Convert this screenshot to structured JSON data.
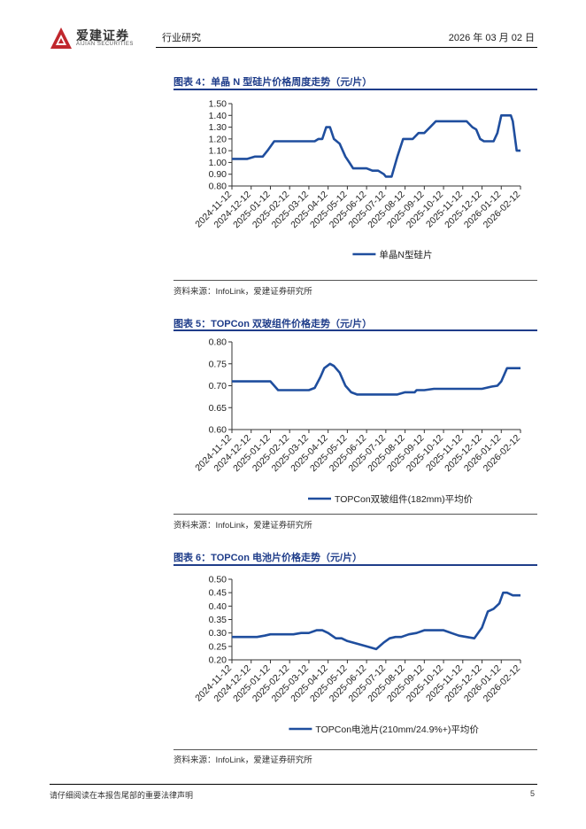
{
  "header": {
    "company_cn": "爱建证券",
    "company_en": "AIJIAN SECURITIES",
    "category": "行业研究",
    "date": "2026 年 03 月 02 日",
    "brand_color": "#c0272d"
  },
  "figures": [
    {
      "title": "图表 4：单晶 N 型硅片价格周度走势（元/片）",
      "source": "资料来源：InfoLink，爱建证券研究所"
    },
    {
      "title": "图表 5：TOPCon 双玻组件价格走势（元/片）",
      "source": "资料来源：InfoLink，爱建证券研究所"
    },
    {
      "title": "图表 6：TOPCon 电池片价格走势（元/片）",
      "source": "资料来源：InfoLink，爱建证券研究所"
    }
  ],
  "chart_data": [
    {
      "type": "line",
      "categories": [
        "2024-11-12",
        "2024-12-12",
        "2025-01-12",
        "2025-02-12",
        "2025-03-12",
        "2025-04-12",
        "2025-05-12",
        "2025-06-12",
        "2025-07-12",
        "2025-08-12",
        "2025-09-12",
        "2025-10-12",
        "2025-11-12",
        "2025-12-12",
        "2026-01-12",
        "2026-02-12"
      ],
      "ylim": [
        0.8,
        1.5
      ],
      "yticks": [
        "0.80",
        "0.90",
        "1.00",
        "1.10",
        "1.20",
        "1.30",
        "1.40",
        "1.50"
      ],
      "legend_position": "bottom",
      "color": "#1f4e9e",
      "series": [
        {
          "name": "单晶N型硅片",
          "x": [
            0,
            0.25,
            0.6,
            0.8,
            1.2,
            1.6,
            1.85,
            2.2,
            2.5,
            3.0,
            3.5,
            3.8,
            4.0,
            4.3,
            4.5,
            4.7,
            4.9,
            5.1,
            5.3,
            5.6,
            5.9,
            6.1,
            6.3,
            6.5,
            6.8,
            7.0,
            7.3,
            7.6,
            7.9,
            8.0,
            8.3,
            8.6,
            8.9,
            9.1,
            9.4,
            9.7,
            10.0,
            10.3,
            10.6,
            10.9,
            11.1,
            11.3,
            11.6,
            11.9,
            12.2,
            12.5,
            12.7,
            12.9,
            13.1,
            13.4,
            13.6,
            13.8,
            14.0,
            14.2,
            14.5,
            14.6,
            14.8,
            15.0
          ],
          "values": [
            1.03,
            1.03,
            1.03,
            1.03,
            1.05,
            1.05,
            1.1,
            1.18,
            1.18,
            1.18,
            1.18,
            1.18,
            1.18,
            1.18,
            1.2,
            1.2,
            1.3,
            1.3,
            1.2,
            1.16,
            1.05,
            1.0,
            0.95,
            0.95,
            0.95,
            0.95,
            0.93,
            0.93,
            0.9,
            0.88,
            0.88,
            1.05,
            1.2,
            1.2,
            1.2,
            1.25,
            1.25,
            1.3,
            1.35,
            1.35,
            1.35,
            1.35,
            1.35,
            1.35,
            1.35,
            1.3,
            1.28,
            1.2,
            1.18,
            1.18,
            1.18,
            1.25,
            1.4,
            1.4,
            1.4,
            1.35,
            1.1,
            1.1
          ]
        }
      ]
    },
    {
      "type": "line",
      "categories": [
        "2024-11-12",
        "2024-12-12",
        "2025-01-12",
        "2025-02-12",
        "2025-03-12",
        "2025-04-12",
        "2025-05-12",
        "2025-06-12",
        "2025-07-12",
        "2025-08-12",
        "2025-09-12",
        "2025-10-12",
        "2025-11-12",
        "2025-12-12",
        "2026-01-12",
        "2026-02-12"
      ],
      "ylim": [
        0.6,
        0.8
      ],
      "yticks": [
        "0.60",
        "0.65",
        "0.70",
        "0.75",
        "0.80"
      ],
      "legend_position": "bottom",
      "color": "#1f4e9e",
      "series": [
        {
          "name": "TOPCon双玻组件(182mm)平均价",
          "x": [
            0,
            0.5,
            1.0,
            1.4,
            1.7,
            2.0,
            2.4,
            2.7,
            3.0,
            3.3,
            3.6,
            4.0,
            4.3,
            4.6,
            4.8,
            5.1,
            5.3,
            5.6,
            5.9,
            6.2,
            6.5,
            7.0,
            7.5,
            8.0,
            8.4,
            8.6,
            9.0,
            9.5,
            9.6,
            10.0,
            10.5,
            11.0,
            11.5,
            12.0,
            12.6,
            13.0,
            13.5,
            13.8,
            14.0,
            14.3,
            14.6,
            14.9,
            15.0
          ],
          "values": [
            0.71,
            0.71,
            0.71,
            0.71,
            0.71,
            0.71,
            0.69,
            0.69,
            0.69,
            0.69,
            0.69,
            0.69,
            0.695,
            0.72,
            0.74,
            0.75,
            0.745,
            0.73,
            0.7,
            0.685,
            0.68,
            0.68,
            0.68,
            0.68,
            0.68,
            0.68,
            0.685,
            0.685,
            0.69,
            0.69,
            0.693,
            0.693,
            0.693,
            0.693,
            0.693,
            0.693,
            0.698,
            0.7,
            0.71,
            0.74,
            0.74,
            0.74,
            0.74
          ]
        }
      ]
    },
    {
      "type": "line",
      "categories": [
        "2024-11-12",
        "2024-12-12",
        "2025-01-12",
        "2025-02-12",
        "2025-03-12",
        "2025-04-12",
        "2025-05-12",
        "2025-06-12",
        "2025-07-12",
        "2025-08-12",
        "2025-09-12",
        "2025-10-12",
        "2025-11-12",
        "2025-12-12",
        "2026-01-12",
        "2026-02-12"
      ],
      "ylim": [
        0.2,
        0.5
      ],
      "yticks": [
        "0.20",
        "0.25",
        "0.30",
        "0.35",
        "0.40",
        "0.45",
        "0.50"
      ],
      "legend_position": "bottom",
      "color": "#1f4e9e",
      "series": [
        {
          "name": "TOPCon电池片(210mm/24.9%+)平均价",
          "x": [
            0,
            0.5,
            1.0,
            1.3,
            1.7,
            2.0,
            2.4,
            2.8,
            3.2,
            3.6,
            4.0,
            4.4,
            4.7,
            5.0,
            5.4,
            5.7,
            6.0,
            6.5,
            7.0,
            7.5,
            7.9,
            8.2,
            8.5,
            8.8,
            9.2,
            9.6,
            10.0,
            10.5,
            11.0,
            11.4,
            11.8,
            12.2,
            12.6,
            13.0,
            13.3,
            13.6,
            13.9,
            14.1,
            14.3,
            14.6,
            14.9,
            15.0
          ],
          "values": [
            0.285,
            0.285,
            0.285,
            0.285,
            0.29,
            0.295,
            0.295,
            0.295,
            0.295,
            0.3,
            0.3,
            0.31,
            0.31,
            0.3,
            0.28,
            0.28,
            0.27,
            0.26,
            0.25,
            0.24,
            0.265,
            0.28,
            0.285,
            0.285,
            0.295,
            0.3,
            0.31,
            0.31,
            0.31,
            0.3,
            0.29,
            0.285,
            0.28,
            0.32,
            0.38,
            0.39,
            0.41,
            0.45,
            0.45,
            0.44,
            0.44,
            0.44
          ]
        }
      ]
    }
  ],
  "footer": {
    "disclaimer": "请仔细阅读在本报告尾部的重要法律声明",
    "page_number": "5"
  }
}
